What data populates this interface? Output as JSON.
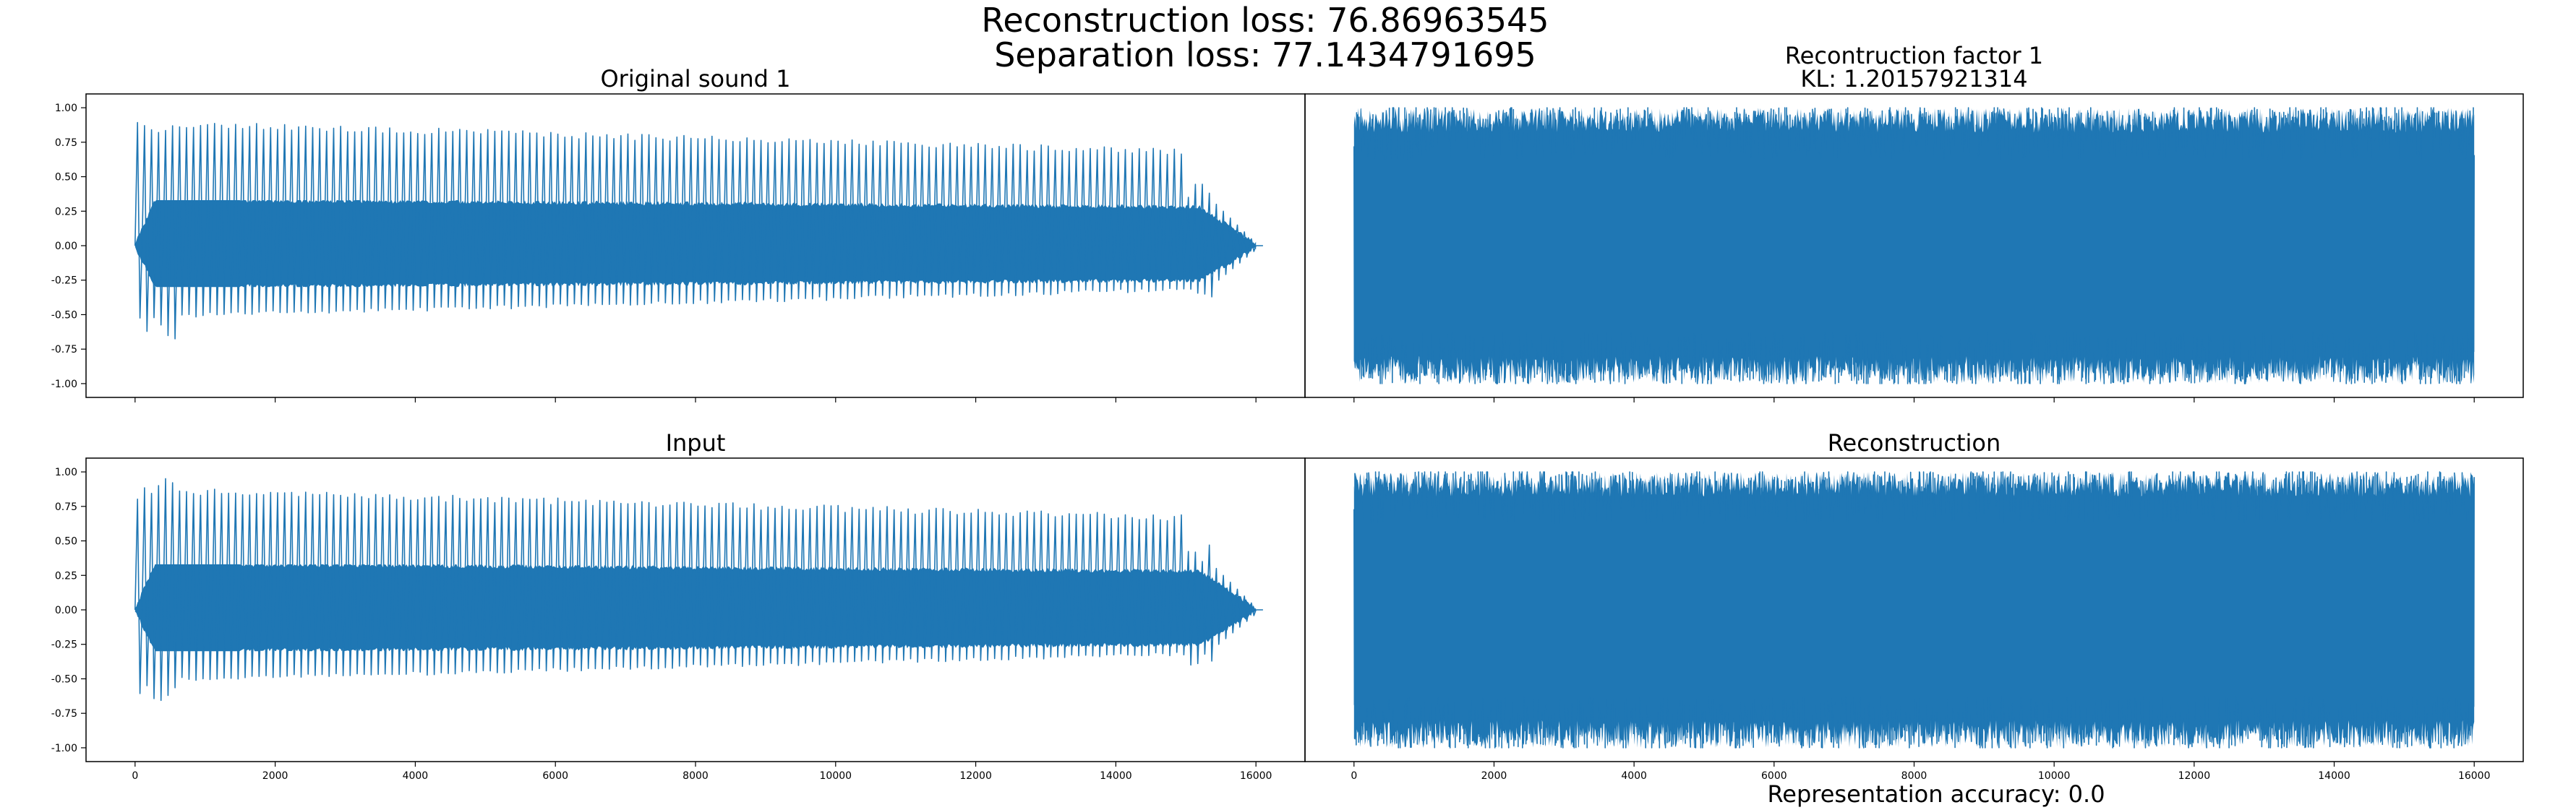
{
  "figure": {
    "title_line1": "Reconstruction loss: 76.86963545",
    "title_line2": "Separation loss: 77.1434791695",
    "footer": "Representation accuracy: 0.0",
    "line_color": "#1f77b4"
  },
  "chart_data": [
    {
      "type": "line",
      "id": "original",
      "title_lines": [
        "Original sound 1"
      ],
      "x": [
        0,
        16000
      ],
      "xlim": [
        -700,
        16700
      ],
      "ylim": [
        -1.1,
        1.1
      ],
      "yticks": [
        1.0,
        0.75,
        0.5,
        0.25,
        0.0,
        -0.25,
        -0.5,
        -0.75,
        -1.0
      ],
      "ytick_labels": [
        "1.00",
        "0.75",
        "0.50",
        "0.25",
        "0.00",
        "-0.25",
        "-0.50",
        "-0.75",
        "-1.00"
      ],
      "xticks": [
        0,
        2000,
        4000,
        6000,
        8000,
        10000,
        12000,
        14000,
        16000
      ],
      "xtick_labels": [],
      "signal": "harmonic",
      "series": [
        {
          "values_envelope_peak": [
            0.98,
            -0.68
          ],
          "decay_end": 16000
        }
      ]
    },
    {
      "type": "line",
      "id": "recon_factor",
      "title_lines": [
        "Recontruction factor 1",
        "KL: 1.20157921314"
      ],
      "x": [
        0,
        16000
      ],
      "xlim": [
        -700,
        16700
      ],
      "ylim": [
        -1.1,
        1.1
      ],
      "yticks": [],
      "ytick_labels": [],
      "xticks": [
        0,
        2000,
        4000,
        6000,
        8000,
        10000,
        12000,
        14000,
        16000
      ],
      "xtick_labels": [],
      "signal": "noise",
      "series": [
        {
          "values_envelope_peak": [
            1.0,
            -1.0
          ]
        }
      ]
    },
    {
      "type": "line",
      "id": "input",
      "title_lines": [
        "Input"
      ],
      "x": [
        0,
        16000
      ],
      "xlim": [
        -700,
        16700
      ],
      "ylim": [
        -1.1,
        1.1
      ],
      "yticks": [
        1.0,
        0.75,
        0.5,
        0.25,
        0.0,
        -0.25,
        -0.5,
        -0.75,
        -1.0
      ],
      "ytick_labels": [
        "1.00",
        "0.75",
        "0.50",
        "0.25",
        "0.00",
        "-0.25",
        "-0.50",
        "-0.75",
        "-1.00"
      ],
      "xticks": [
        0,
        2000,
        4000,
        6000,
        8000,
        10000,
        12000,
        14000,
        16000
      ],
      "xtick_labels": [
        "0",
        "2000",
        "4000",
        "6000",
        "8000",
        "10000",
        "12000",
        "14000",
        "16000"
      ],
      "signal": "harmonic",
      "series": [
        {
          "values_envelope_peak": [
            0.96,
            -0.68
          ],
          "decay_end": 16000
        }
      ]
    },
    {
      "type": "line",
      "id": "reconstruction",
      "title_lines": [
        "Reconstruction"
      ],
      "x": [
        0,
        16000
      ],
      "xlim": [
        -700,
        16700
      ],
      "ylim": [
        -1.1,
        1.1
      ],
      "yticks": [],
      "ytick_labels": [],
      "xticks": [
        0,
        2000,
        4000,
        6000,
        8000,
        10000,
        12000,
        14000,
        16000
      ],
      "xtick_labels": [
        "0",
        "2000",
        "4000",
        "6000",
        "8000",
        "10000",
        "12000",
        "14000",
        "16000"
      ],
      "signal": "noise",
      "series": [
        {
          "values_envelope_peak": [
            1.0,
            -1.0
          ]
        }
      ]
    }
  ]
}
